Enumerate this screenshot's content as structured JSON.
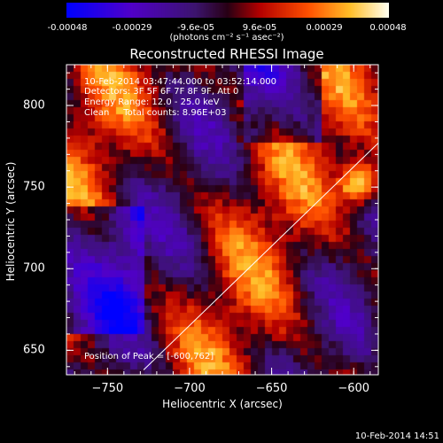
{
  "colorbar": {
    "ticks": [
      "-0.00048",
      "-0.00029",
      "-9.6e-05",
      "9.6e-05",
      "0.00029",
      "0.00048"
    ],
    "unit": "(photons cm⁻² s⁻¹ asec⁻²)"
  },
  "chart_data": {
    "type": "heatmap",
    "title": "Reconstructed RHESSI Image",
    "xlabel": "Heliocentric X (arcsec)",
    "ylabel": "Heliocentric Y (arcsec)",
    "xlim": [
      -775,
      -585
    ],
    "ylim": [
      635,
      825
    ],
    "xticks": [
      "−750",
      "−700",
      "−650",
      "−600"
    ],
    "xtick_values": [
      -750,
      -700,
      -650,
      -600
    ],
    "yticks": [
      "650",
      "700",
      "750",
      "800"
    ],
    "ytick_values": [
      650,
      700,
      750,
      800
    ],
    "clim": [
      -0.00048,
      0.00048
    ],
    "peak": [
      -600,
      762
    ],
    "line": {
      "x": [
        -728,
        -585
      ],
      "y": [
        638,
        777
      ]
    }
  },
  "info": {
    "line1": "10-Feb-2014 03:47:44.000 to 03:52:14.000",
    "line2": "Detectors: 3F 5F 6F 7F 8F 9F, Att 0",
    "line3": "Energy Range: 12.0 - 25.0 keV",
    "line4": "Clean     Total counts: 8.96E+03"
  },
  "peak_label": "Position of Peak = [-600,762]",
  "timestamp": "10-Feb-2014 14:51"
}
